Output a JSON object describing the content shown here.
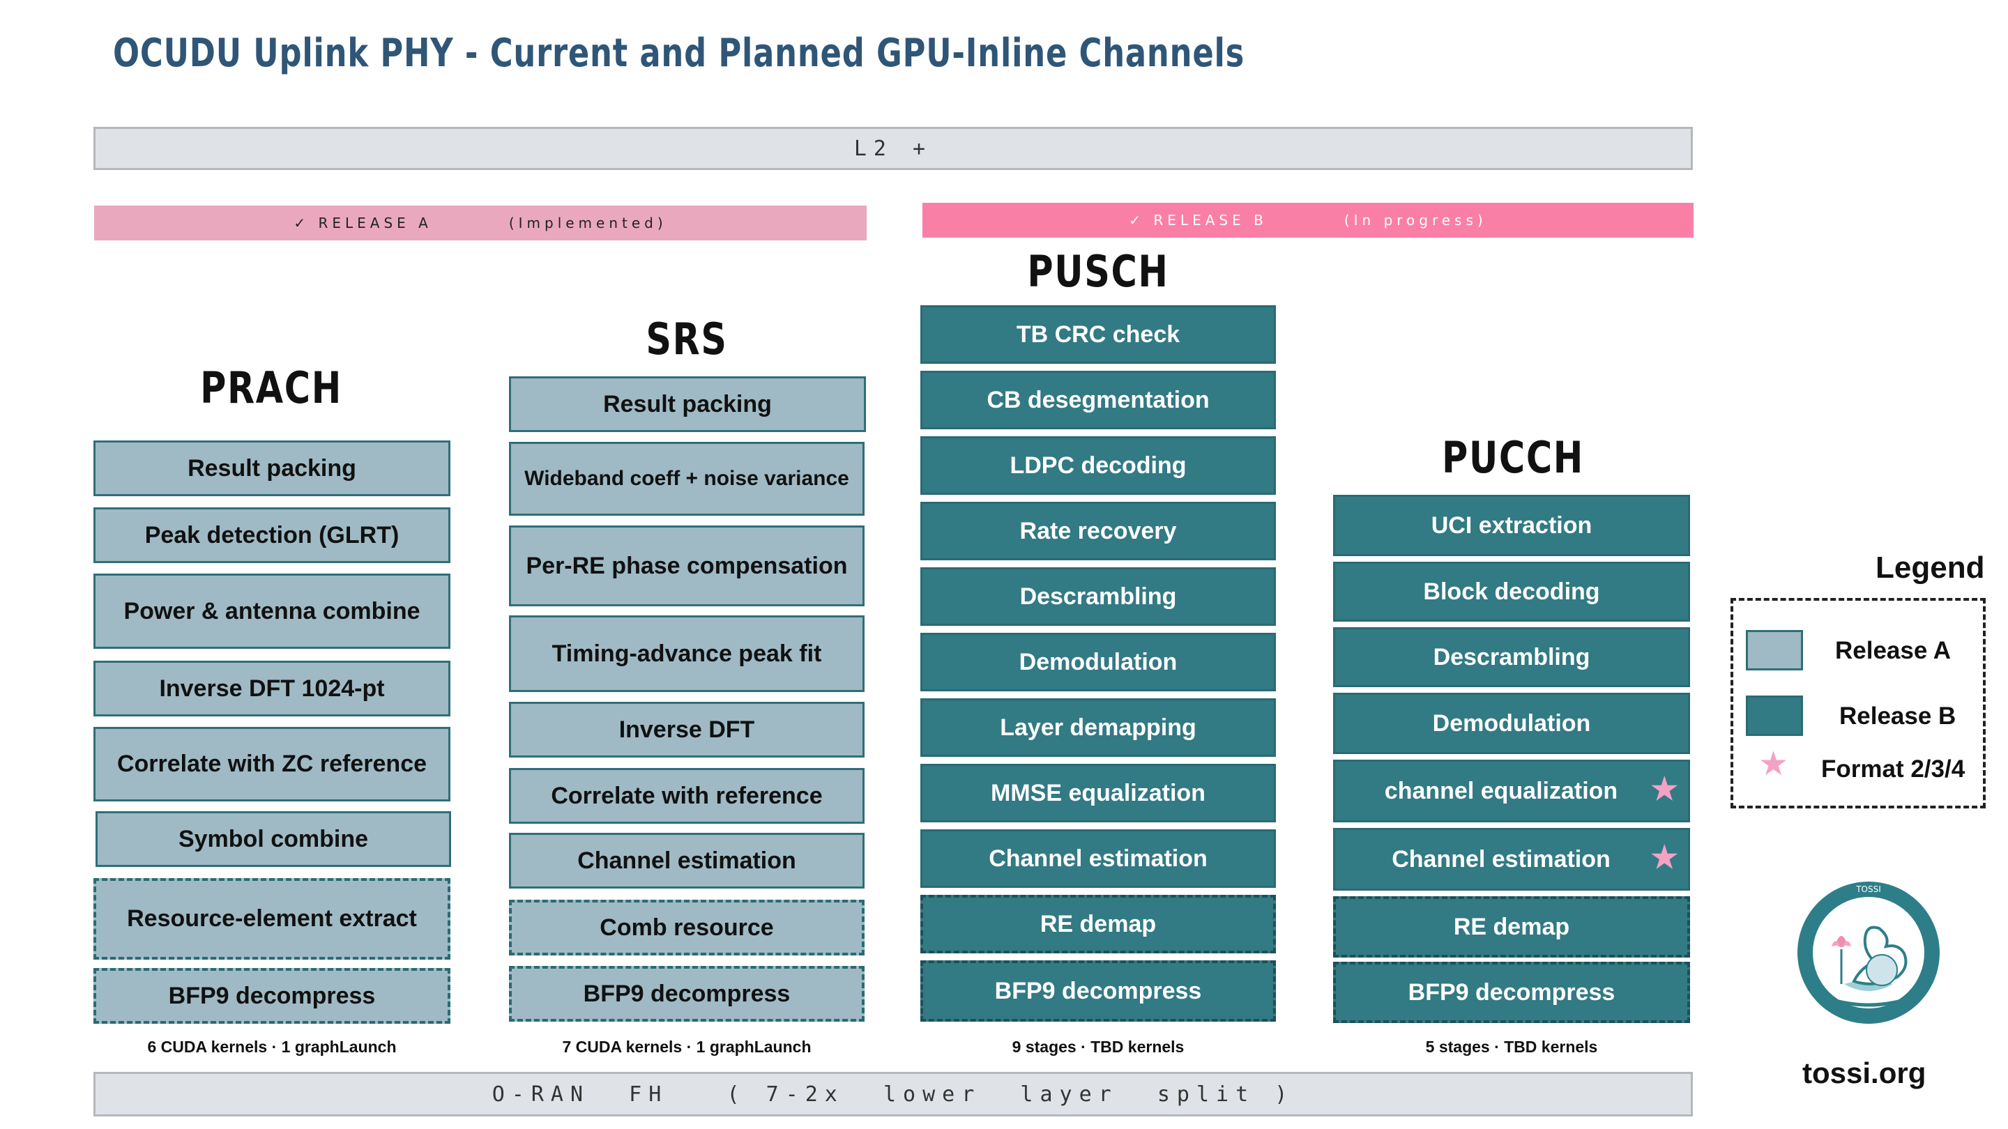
{
  "title": "OCUDU  Uplink  PHY  - Current and Planned GPU-Inline Channels",
  "top_bar": "L2 +",
  "bottom_bar": "O-RAN  FH   ( 7-2x  lower  layer  split )",
  "release_a": {
    "label": "✓ RELEASE A",
    "status": "(Implemented)",
    "color": "#eaa8be"
  },
  "release_b": {
    "label": "✓ RELEASE B",
    "status": "(In progress)",
    "color": "#fa7fa6"
  },
  "channels": {
    "prach": {
      "title": "PRACH",
      "blocks": [
        "Result packing",
        "Peak detection (GLRT)",
        "Power & antenna combine",
        "Inverse DFT  1024-pt",
        "Correlate with ZC reference",
        "Symbol combine",
        "Resource-element extract",
        "BFP9 decompress"
      ],
      "footer": "6 CUDA kernels  ·  1 graphLaunch"
    },
    "srs": {
      "title": "SRS",
      "blocks": [
        "Result packing",
        "Wideband coeff + noise variance",
        "Per-RE phase compensation",
        "Timing-advance peak fit",
        "Inverse DFT",
        "Correlate with reference",
        "Channel estimation",
        "Comb resource",
        "BFP9 decompress"
      ],
      "footer": "7 CUDA kernels  ·  1 graphLaunch"
    },
    "pusch": {
      "title": "PUSCH",
      "blocks": [
        "TB CRC check",
        "CB desegmentation",
        "LDPC decoding",
        "Rate recovery",
        "Descrambling",
        "Demodulation",
        "Layer demapping",
        "MMSE equalization",
        "Channel estimation",
        "RE demap",
        "BFP9 decompress"
      ],
      "footer": "9 stages  ·  TBD kernels"
    },
    "pucch": {
      "title": "PUCCH",
      "blocks": [
        "UCI extraction",
        "Block decoding",
        "Descrambling",
        "Demodulation",
        "channel equalization",
        "Channel estimation",
        "RE demap",
        "BFP9 decompress"
      ],
      "footer": "5 stages  ·  TBD kernels"
    }
  },
  "legend": {
    "title": "Legend",
    "release_a": "Release A",
    "release_b": "Release B",
    "format": "Format 2/3/4",
    "star_icon": "star-icon",
    "release_a_color": "#9fbac5",
    "release_b_color": "#327a84",
    "star_color": "#f3a2c4"
  },
  "logo": {
    "ring_text": "TOSSI",
    "site": "tossi.org"
  }
}
